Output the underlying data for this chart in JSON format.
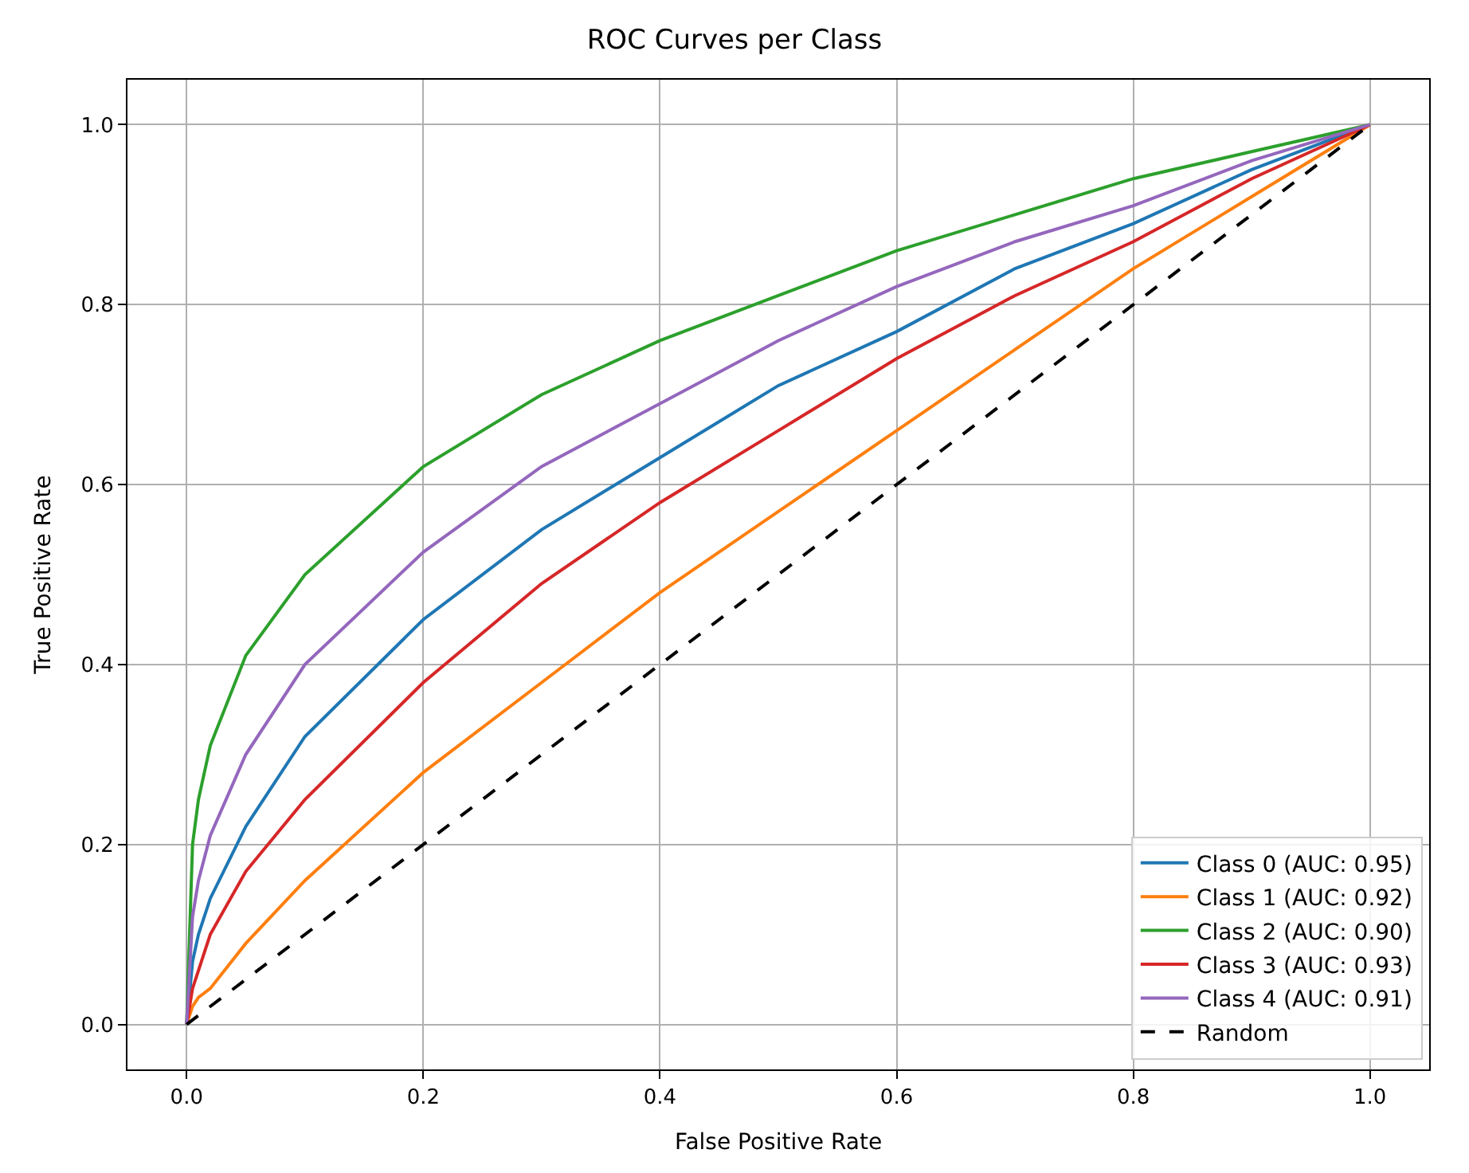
{
  "chart_data": {
    "type": "line",
    "title": "ROC Curves per Class",
    "xlabel": "False Positive Rate",
    "ylabel": "True Positive Rate",
    "x": [
      0,
      0.005,
      0.01,
      0.02,
      0.05,
      0.1,
      0.2,
      0.3,
      0.4,
      0.5,
      0.6,
      0.7,
      0.8,
      0.9,
      1.0
    ],
    "series": [
      {
        "name": "Class 0 (AUC: 0.95)",
        "color": "#1f77b4",
        "values": [
          0,
          0.07,
          0.1,
          0.14,
          0.22,
          0.32,
          0.45,
          0.55,
          0.63,
          0.71,
          0.77,
          0.84,
          0.89,
          0.95,
          1.0
        ]
      },
      {
        "name": "Class 1 (AUC: 0.92)",
        "color": "#ff7f0e",
        "values": [
          0,
          0.02,
          0.03,
          0.04,
          0.09,
          0.16,
          0.28,
          0.38,
          0.48,
          0.57,
          0.66,
          0.75,
          0.84,
          0.92,
          1.0
        ]
      },
      {
        "name": "Class 2 (AUC: 0.90)",
        "color": "#2ca02c",
        "values": [
          0,
          0.2,
          0.25,
          0.31,
          0.41,
          0.5,
          0.62,
          0.7,
          0.76,
          0.81,
          0.86,
          0.9,
          0.94,
          0.97,
          1.0
        ]
      },
      {
        "name": "Class 3 (AUC: 0.93)",
        "color": "#d62728",
        "values": [
          0,
          0.04,
          0.06,
          0.1,
          0.17,
          0.25,
          0.38,
          0.49,
          0.58,
          0.66,
          0.74,
          0.81,
          0.87,
          0.94,
          1.0
        ]
      },
      {
        "name": "Class 4 (AUC: 0.91)",
        "color": "#9467bd",
        "values": [
          0,
          0.12,
          0.16,
          0.21,
          0.3,
          0.4,
          0.525,
          0.62,
          0.69,
          0.76,
          0.82,
          0.87,
          0.91,
          0.96,
          1.0
        ]
      },
      {
        "name": "Random",
        "color": "#000000",
        "line_style": "dashed",
        "x": [
          0,
          1
        ],
        "values": [
          0,
          1
        ]
      }
    ],
    "xlim": [
      -0.05,
      1.05
    ],
    "ylim": [
      -0.05,
      1.05
    ],
    "xticks": [
      {
        "value": 0,
        "label": "0.0"
      },
      {
        "value": 0.2,
        "label": "0.2"
      },
      {
        "value": 0.4,
        "label": "0.4"
      },
      {
        "value": 0.6,
        "label": "0.6"
      },
      {
        "value": 0.8,
        "label": "0.8"
      },
      {
        "value": 1,
        "label": "1.0"
      }
    ],
    "yticks": [
      {
        "value": 0,
        "label": "0.0"
      },
      {
        "value": 0.2,
        "label": "0.2"
      },
      {
        "value": 0.4,
        "label": "0.4"
      },
      {
        "value": 0.6,
        "label": "0.6"
      },
      {
        "value": 0.8,
        "label": "0.8"
      },
      {
        "value": 1,
        "label": "1.0"
      }
    ],
    "grid": true,
    "legend": "bottom right"
  }
}
